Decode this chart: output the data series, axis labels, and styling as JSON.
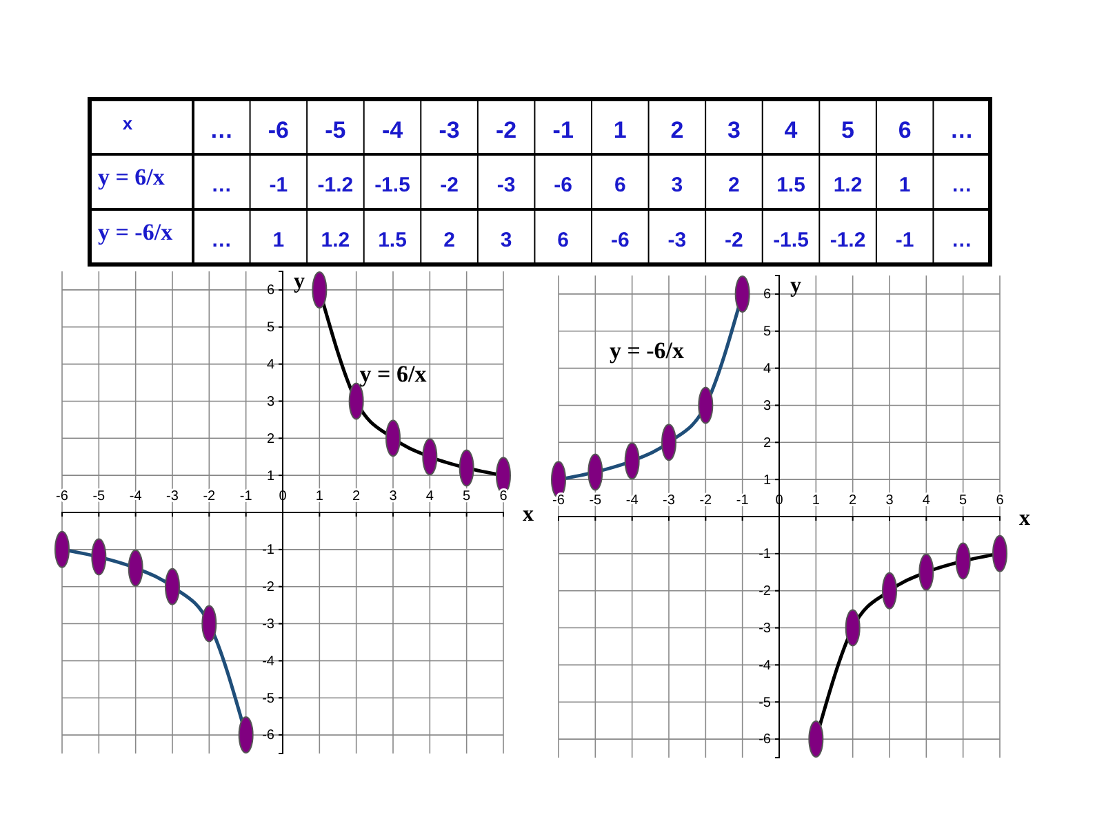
{
  "chart_data": [
    {
      "type": "other",
      "xlabel": "x",
      "categories": [
        "…",
        "-6",
        "-5",
        "-4",
        "-3",
        "-2",
        "-1",
        "1",
        "2",
        "3",
        "4",
        "5",
        "6",
        "…"
      ],
      "y_categories": [
        "y = 6/x",
        "y = -6/x"
      ],
      "cell_labels": [
        [
          "…",
          "-1",
          "-1.2",
          "-1.5",
          "-2",
          "-3",
          "-6",
          "6",
          "3",
          "2",
          "1.5",
          "1.2",
          "1",
          "…"
        ],
        [
          "…",
          "1",
          "1.2",
          "1.5",
          "2",
          "3",
          "6",
          "-6",
          "-3",
          "-2",
          "-1.5",
          "-1.2",
          "-1",
          "…"
        ]
      ]
    },
    {
      "type": "line",
      "xlabel": "x",
      "ylabel": "y",
      "xlim": [
        -6,
        6
      ],
      "ylim": [
        -6.5,
        6.5
      ],
      "xticks": [
        -6,
        -5,
        -4,
        -3,
        -2,
        -1,
        0,
        1,
        2,
        3,
        4,
        5,
        6
      ],
      "yticks": [
        -6,
        -5,
        -4,
        -3,
        -2,
        -1,
        1,
        2,
        3,
        4,
        5,
        6
      ],
      "grid": true,
      "annotations": [
        "y = 6/x"
      ],
      "series": [
        {
          "type": "line",
          "color": "#000000",
          "x": [
            1,
            2,
            3,
            4,
            5,
            6
          ],
          "values": [
            6,
            3,
            2,
            1.5,
            1.2,
            1
          ]
        },
        {
          "type": "line",
          "color": "#1f4e79",
          "x": [
            -6,
            -5,
            -4,
            -3,
            -2,
            -1
          ],
          "values": [
            -1,
            -1.2,
            -1.5,
            -2,
            -3,
            -6
          ]
        },
        {
          "type": "scatter",
          "color": "#800080",
          "x": [
            -6,
            -5,
            -4,
            -3,
            -2,
            -1,
            1,
            2,
            3,
            4,
            5,
            6
          ],
          "values": [
            -1,
            -1.2,
            -1.5,
            -2,
            -3,
            -6,
            6,
            3,
            2,
            1.5,
            1.2,
            1
          ]
        }
      ]
    },
    {
      "type": "line",
      "xlabel": "x",
      "ylabel": "y",
      "xlim": [
        -6,
        6
      ],
      "ylim": [
        -6.5,
        6.5
      ],
      "xticks": [
        -6,
        -5,
        -4,
        -3,
        -2,
        -1,
        0,
        1,
        2,
        3,
        4,
        5,
        6
      ],
      "yticks": [
        -6,
        -5,
        -4,
        -3,
        -2,
        -1,
        1,
        2,
        3,
        4,
        5,
        6
      ],
      "grid": true,
      "annotations": [
        "y = -6/x"
      ],
      "series": [
        {
          "type": "line",
          "color": "#1f4e79",
          "x": [
            -6,
            -5,
            -4,
            -3,
            -2,
            -1
          ],
          "values": [
            1,
            1.2,
            1.5,
            2,
            3,
            6
          ]
        },
        {
          "type": "line",
          "color": "#000000",
          "x": [
            1,
            2,
            3,
            4,
            5,
            6
          ],
          "values": [
            -6,
            -3,
            -2,
            -1.5,
            -1.2,
            -1
          ]
        },
        {
          "type": "scatter",
          "color": "#800080",
          "x": [
            -6,
            -5,
            -4,
            -3,
            -2,
            -1,
            1,
            2,
            3,
            4,
            5,
            6
          ],
          "values": [
            1,
            1.2,
            1.5,
            2,
            3,
            6,
            -6,
            -3,
            -2,
            -1.5,
            -1.2,
            -1
          ]
        }
      ]
    }
  ]
}
